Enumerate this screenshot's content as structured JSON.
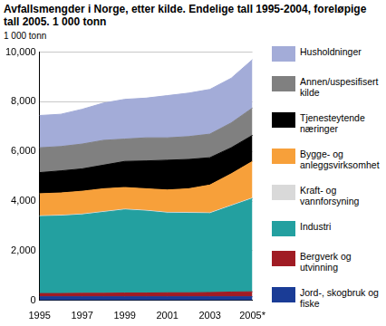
{
  "chart_data": {
    "type": "area",
    "title": "Avfallsmengder i Norge, etter kilde. Endelige tall 1995-2004, foreløpige tall 2005. 1 000 tonn",
    "y_label": "1 000 tonn",
    "categories": [
      "1995",
      null,
      "1997",
      null,
      "1999",
      null,
      "2001",
      null,
      "2003",
      null,
      "2005*"
    ],
    "stacked": true,
    "grid": true,
    "legend": "right",
    "ylim": [
      0,
      10000
    ],
    "yticks": [
      0,
      2000,
      4000,
      6000,
      8000,
      10000
    ],
    "series": [
      {
        "name": "Jord-, skogbruk og fiske",
        "color": "#1a3c96",
        "values": [
          150,
          150,
          150,
          150,
          150,
          150,
          150,
          150,
          150,
          150,
          150
        ]
      },
      {
        "name": "Bergverk og utvinning",
        "color": "#a01c24",
        "values": [
          130,
          130,
          140,
          140,
          150,
          150,
          160,
          160,
          170,
          190,
          200
        ]
      },
      {
        "name": "Industri",
        "color": "#23a0a0",
        "values": [
          3100,
          3120,
          3160,
          3260,
          3350,
          3300,
          3210,
          3200,
          3180,
          3460,
          3750
        ]
      },
      {
        "name": "Kraft- og vannforsyning",
        "color": "#d9d9d9",
        "values": [
          30,
          30,
          30,
          30,
          30,
          30,
          30,
          30,
          30,
          30,
          30
        ]
      },
      {
        "name": "Bygge- og anleggsvirksomhet",
        "color": "#f7a03a",
        "values": [
          890,
          900,
          920,
          920,
          870,
          870,
          900,
          960,
          1120,
          1270,
          1470
        ]
      },
      {
        "name": "Tjenesteytende næringer",
        "color": "#000000",
        "values": [
          850,
          890,
          900,
          950,
          1050,
          1120,
          1200,
          1180,
          1100,
          1050,
          1050
        ]
      },
      {
        "name": "Annen/uspesifisert kilde",
        "color": "#808080",
        "values": [
          1000,
          980,
          1000,
          1000,
          900,
          930,
          900,
          920,
          950,
          1000,
          1100
        ]
      },
      {
        "name": "Husholdninger",
        "color": "#a3acd8",
        "values": [
          1300,
          1300,
          1400,
          1500,
          1600,
          1600,
          1700,
          1750,
          1800,
          1800,
          1950
        ]
      }
    ]
  }
}
